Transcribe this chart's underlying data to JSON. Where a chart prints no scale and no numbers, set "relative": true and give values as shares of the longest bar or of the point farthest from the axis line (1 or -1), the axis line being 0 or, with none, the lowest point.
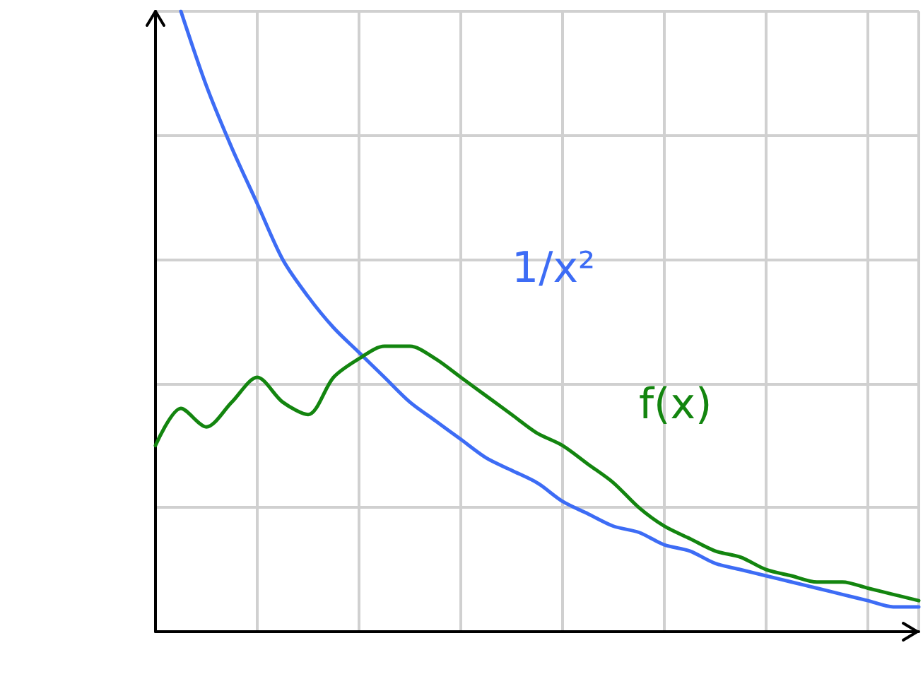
{
  "chart_data": {
    "type": "line",
    "relative": true,
    "grid": true,
    "marker": "none",
    "line_style": "solid",
    "categories": [
      null,
      null,
      null,
      null,
      null,
      null,
      null,
      null,
      null,
      null,
      null,
      null,
      null,
      null,
      null,
      null,
      null,
      null,
      null,
      null,
      null,
      null,
      null,
      null,
      null,
      null,
      null,
      null,
      null,
      null,
      null
    ],
    "series": [
      {
        "name": "1/x²",
        "color": "#3d6cf5",
        "values": [
          null,
          1,
          0.88,
          0.78,
          0.69,
          0.6,
          0.54,
          0.49,
          0.45,
          0.41,
          0.37,
          0.34,
          0.31,
          0.28,
          0.26,
          0.24,
          0.21,
          0.19,
          0.17,
          0.16,
          0.14,
          0.13,
          0.11,
          0.1,
          0.09,
          0.08,
          0.07,
          0.06,
          0.05,
          0.04,
          0.04
        ]
      },
      {
        "name": "f(x)",
        "color": "#13850f",
        "values": [
          0.3,
          0.36,
          0.33,
          0.37,
          0.41,
          0.37,
          0.35,
          0.41,
          0.44,
          0.46,
          0.46,
          0.44,
          0.41,
          0.38,
          0.35,
          0.32,
          0.3,
          0.27,
          0.24,
          0.2,
          0.17,
          0.15,
          0.13,
          0.12,
          0.1,
          0.09,
          0.08,
          0.08,
          0.07,
          0.06,
          0.05
        ]
      }
    ]
  }
}
